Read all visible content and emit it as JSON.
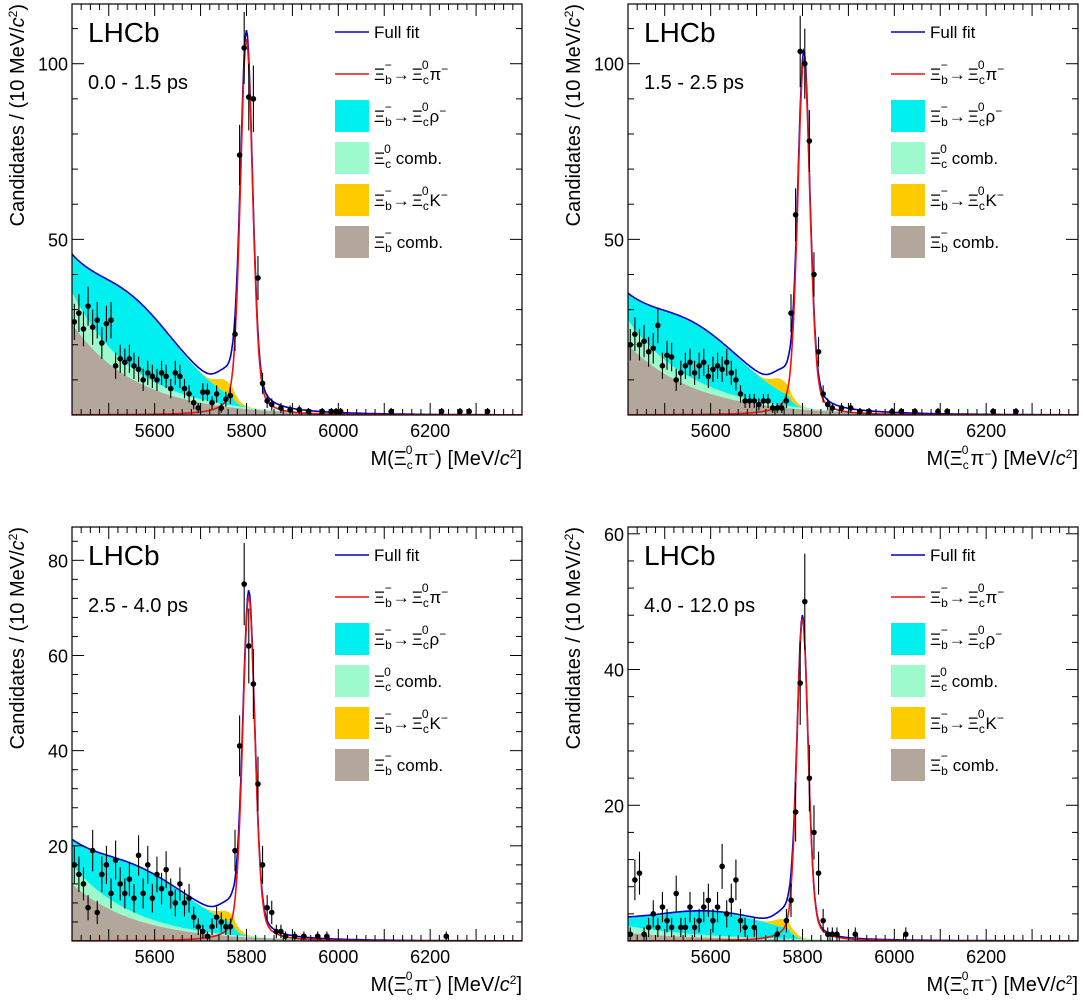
{
  "figure": {
    "experiment": "LHCb",
    "colors": {
      "full_fit": "#0000cc",
      "signal": "#ee1111",
      "xi_rho": "#00f0f0",
      "xic_comb": "#9dfacb",
      "xi_k": "#ffcc00",
      "xib_comb": "#b3a79b",
      "data": "#000000"
    },
    "axis_labels": {
      "x_main": "M(",
      "x_sym": "Ξ",
      "x_sub": "c",
      "x_sup": "0",
      "x_pi": "π",
      "x_minus": "−",
      "x_units": ") [MeV/",
      "x_c": "c",
      "x_two": "2",
      "x_end": "]",
      "y_main": "Candidates / (10 MeV/",
      "y_c": "c",
      "y_two": "2",
      "y_end": ")"
    },
    "legend": [
      {
        "key": "full_fit",
        "kind": "line",
        "text": "Full fit"
      },
      {
        "key": "signal",
        "kind": "line",
        "xi": "Ξ",
        "sub_b": "b",
        "sup_b": "−",
        "arrow": "→",
        "sub_c": "c",
        "sup_c": "0",
        "tail": "π",
        "tail_sup": "−"
      },
      {
        "key": "xi_rho",
        "kind": "box",
        "xi": "Ξ",
        "sub_b": "b",
        "sup_b": "−",
        "arrow": "→",
        "sub_c": "c",
        "sup_c": "0",
        "tail": "ρ",
        "tail_sup": "−"
      },
      {
        "key": "xic_comb",
        "kind": "box",
        "xi": "Ξ",
        "sub_c": "c",
        "sup_c": "0",
        "tail": "comb."
      },
      {
        "key": "xi_k",
        "kind": "box",
        "xi": "Ξ",
        "sub_b": "b",
        "sup_b": "−",
        "arrow": "→",
        "sub_c": "c",
        "sup_c": "0",
        "tail": "K",
        "tail_sup": "−"
      },
      {
        "key": "xib_comb",
        "kind": "box",
        "xi": "Ξ",
        "sub_b": "b",
        "sup_b": "−",
        "tail": "comb."
      }
    ]
  },
  "chart_data": [
    {
      "type": "line",
      "period": "0.0 - 1.5 ps",
      "xlim": [
        5420,
        6400
      ],
      "ylim": [
        0,
        117
      ],
      "xticks": [
        5600,
        5800,
        6000,
        6200
      ],
      "yticks": [
        50,
        100
      ],
      "model": {
        "peak_height": 107,
        "peak_mass": 5800,
        "sigma": 13,
        "rho_amp": 20.5,
        "rho_center": 5545,
        "rho_width": 110,
        "xic_amp": 9,
        "xic_slope": 125,
        "k_amp": 3.5,
        "k_center": 5755,
        "k_width": 20,
        "comb_amp": 26,
        "comb_slope": 140
      },
      "data_points": [
        {
          "x": 5425,
          "y": 26.5
        },
        {
          "x": 5435,
          "y": 29
        },
        {
          "x": 5445,
          "y": 24.5
        },
        {
          "x": 5455,
          "y": 31
        },
        {
          "x": 5465,
          "y": 25
        },
        {
          "x": 5475,
          "y": 27
        },
        {
          "x": 5485,
          "y": 20.5
        },
        {
          "x": 5495,
          "y": 26
        },
        {
          "x": 5505,
          "y": 27
        },
        {
          "x": 5515,
          "y": 14
        },
        {
          "x": 5525,
          "y": 16
        },
        {
          "x": 5535,
          "y": 15
        },
        {
          "x": 5545,
          "y": 16
        },
        {
          "x": 5555,
          "y": 14
        },
        {
          "x": 5565,
          "y": 13
        },
        {
          "x": 5575,
          "y": 10
        },
        {
          "x": 5585,
          "y": 12
        },
        {
          "x": 5595,
          "y": 11
        },
        {
          "x": 5605,
          "y": 10
        },
        {
          "x": 5615,
          "y": 12
        },
        {
          "x": 5625,
          "y": 11
        },
        {
          "x": 5635,
          "y": 7.5
        },
        {
          "x": 5645,
          "y": 12
        },
        {
          "x": 5655,
          "y": 11
        },
        {
          "x": 5665,
          "y": 7.5
        },
        {
          "x": 5675,
          "y": 6
        },
        {
          "x": 5685,
          "y": 3.5
        },
        {
          "x": 5695,
          "y": 2
        },
        {
          "x": 5705,
          "y": 6.5
        },
        {
          "x": 5715,
          "y": 6.5
        },
        {
          "x": 5725,
          "y": 3.5
        },
        {
          "x": 5735,
          "y": 6
        },
        {
          "x": 5745,
          "y": 2
        },
        {
          "x": 5755,
          "y": 4.5
        },
        {
          "x": 5765,
          "y": 5.5
        },
        {
          "x": 5775,
          "y": 23
        },
        {
          "x": 5785,
          "y": 74
        },
        {
          "x": 5795,
          "y": 104.5
        },
        {
          "x": 5805,
          "y": 90.5
        },
        {
          "x": 5815,
          "y": 90
        },
        {
          "x": 5825,
          "y": 39
        },
        {
          "x": 5835,
          "y": 9
        },
        {
          "x": 5845,
          "y": 4
        },
        {
          "x": 5855,
          "y": 3
        },
        {
          "x": 5875,
          "y": 2
        },
        {
          "x": 5895,
          "y": 1.5
        },
        {
          "x": 5915,
          "y": 1.5
        },
        {
          "x": 5935,
          "y": 1
        },
        {
          "x": 5965,
          "y": 1
        },
        {
          "x": 5985,
          "y": 1
        },
        {
          "x": 5995,
          "y": 1
        },
        {
          "x": 6005,
          "y": 1
        },
        {
          "x": 6115,
          "y": 1
        },
        {
          "x": 6225,
          "y": 1
        },
        {
          "x": 6265,
          "y": 1
        },
        {
          "x": 6285,
          "y": 1
        },
        {
          "x": 6325,
          "y": 1
        }
      ]
    },
    {
      "type": "line",
      "period": "1.5 - 2.5 ps",
      "xlim": [
        5420,
        6400
      ],
      "ylim": [
        0,
        117
      ],
      "xticks": [
        5600,
        5800,
        6000,
        6200
      ],
      "yticks": [
        50,
        100
      ],
      "model": {
        "peak_height": 101.5,
        "peak_mass": 5803,
        "sigma": 13,
        "rho_amp": 16,
        "rho_center": 5560,
        "rho_width": 115,
        "xic_amp": 7,
        "xic_slope": 140,
        "k_amp": 3.5,
        "k_center": 5755,
        "k_width": 20,
        "comb_amp": 20,
        "comb_slope": 150
      },
      "data_points": [
        {
          "x": 5425,
          "y": 20
        },
        {
          "x": 5435,
          "y": 23
        },
        {
          "x": 5445,
          "y": 20
        },
        {
          "x": 5455,
          "y": 21
        },
        {
          "x": 5465,
          "y": 18
        },
        {
          "x": 5475,
          "y": 19
        },
        {
          "x": 5485,
          "y": 25.5
        },
        {
          "x": 5495,
          "y": 14
        },
        {
          "x": 5505,
          "y": 17
        },
        {
          "x": 5515,
          "y": 16.5
        },
        {
          "x": 5525,
          "y": 10
        },
        {
          "x": 5535,
          "y": 12
        },
        {
          "x": 5545,
          "y": 14
        },
        {
          "x": 5555,
          "y": 15
        },
        {
          "x": 5565,
          "y": 12
        },
        {
          "x": 5575,
          "y": 14
        },
        {
          "x": 5585,
          "y": 15
        },
        {
          "x": 5595,
          "y": 11
        },
        {
          "x": 5605,
          "y": 13
        },
        {
          "x": 5615,
          "y": 14
        },
        {
          "x": 5625,
          "y": 13
        },
        {
          "x": 5635,
          "y": 15
        },
        {
          "x": 5645,
          "y": 12
        },
        {
          "x": 5655,
          "y": 10
        },
        {
          "x": 5665,
          "y": 6
        },
        {
          "x": 5675,
          "y": 4
        },
        {
          "x": 5685,
          "y": 4
        },
        {
          "x": 5695,
          "y": 4
        },
        {
          "x": 5705,
          "y": 3
        },
        {
          "x": 5715,
          "y": 4
        },
        {
          "x": 5725,
          "y": 4
        },
        {
          "x": 5735,
          "y": 2
        },
        {
          "x": 5745,
          "y": 2
        },
        {
          "x": 5755,
          "y": 2
        },
        {
          "x": 5765,
          "y": 4
        },
        {
          "x": 5775,
          "y": 29
        },
        {
          "x": 5785,
          "y": 57
        },
        {
          "x": 5795,
          "y": 103.5
        },
        {
          "x": 5805,
          "y": 100
        },
        {
          "x": 5815,
          "y": 78
        },
        {
          "x": 5825,
          "y": 40
        },
        {
          "x": 5835,
          "y": 18
        },
        {
          "x": 5845,
          "y": 6
        },
        {
          "x": 5855,
          "y": 3
        },
        {
          "x": 5865,
          "y": 2
        },
        {
          "x": 5885,
          "y": 2
        },
        {
          "x": 5905,
          "y": 2
        },
        {
          "x": 5925,
          "y": 1
        },
        {
          "x": 5945,
          "y": 1
        },
        {
          "x": 5995,
          "y": 1
        },
        {
          "x": 6015,
          "y": 1
        },
        {
          "x": 6045,
          "y": 1
        },
        {
          "x": 6095,
          "y": 1
        },
        {
          "x": 6115,
          "y": 1
        },
        {
          "x": 6215,
          "y": 1
        },
        {
          "x": 6265,
          "y": 1
        }
      ]
    },
    {
      "type": "line",
      "period": "2.5 - 4.0 ps",
      "xlim": [
        5420,
        6400
      ],
      "ylim": [
        0,
        87
      ],
      "xticks": [
        5600,
        5800,
        6000,
        6200
      ],
      "yticks": [
        20,
        40,
        60,
        80
      ],
      "model": {
        "peak_height": 72.5,
        "peak_mass": 5805,
        "sigma": 13,
        "rho_amp": 10,
        "rho_center": 5560,
        "rho_width": 125,
        "xic_amp": 4,
        "xic_slope": 130,
        "k_amp": 2,
        "k_center": 5760,
        "k_width": 20,
        "comb_amp": 12,
        "comb_slope": 140
      },
      "data_points": [
        {
          "x": 5425,
          "y": 16
        },
        {
          "x": 5435,
          "y": 14
        },
        {
          "x": 5445,
          "y": 12
        },
        {
          "x": 5455,
          "y": 7
        },
        {
          "x": 5465,
          "y": 19
        },
        {
          "x": 5475,
          "y": 6
        },
        {
          "x": 5485,
          "y": 14
        },
        {
          "x": 5495,
          "y": 16
        },
        {
          "x": 5505,
          "y": 10
        },
        {
          "x": 5515,
          "y": 17
        },
        {
          "x": 5525,
          "y": 12
        },
        {
          "x": 5535,
          "y": 10
        },
        {
          "x": 5545,
          "y": 13
        },
        {
          "x": 5555,
          "y": 9
        },
        {
          "x": 5565,
          "y": 18
        },
        {
          "x": 5575,
          "y": 10
        },
        {
          "x": 5585,
          "y": 16
        },
        {
          "x": 5595,
          "y": 9
        },
        {
          "x": 5605,
          "y": 14
        },
        {
          "x": 5615,
          "y": 11
        },
        {
          "x": 5625,
          "y": 15
        },
        {
          "x": 5635,
          "y": 10
        },
        {
          "x": 5645,
          "y": 8
        },
        {
          "x": 5655,
          "y": 12
        },
        {
          "x": 5665,
          "y": 8
        },
        {
          "x": 5675,
          "y": 9
        },
        {
          "x": 5685,
          "y": 5
        },
        {
          "x": 5695,
          "y": 3
        },
        {
          "x": 5705,
          "y": 2
        },
        {
          "x": 5715,
          "y": 1
        },
        {
          "x": 5725,
          "y": 3
        },
        {
          "x": 5735,
          "y": 5
        },
        {
          "x": 5745,
          "y": 4
        },
        {
          "x": 5755,
          "y": 3
        },
        {
          "x": 5765,
          "y": 3
        },
        {
          "x": 5775,
          "y": 19
        },
        {
          "x": 5785,
          "y": 41
        },
        {
          "x": 5795,
          "y": 75
        },
        {
          "x": 5805,
          "y": 62
        },
        {
          "x": 5815,
          "y": 54
        },
        {
          "x": 5825,
          "y": 33
        },
        {
          "x": 5835,
          "y": 16
        },
        {
          "x": 5845,
          "y": 7
        },
        {
          "x": 5855,
          "y": 6
        },
        {
          "x": 5865,
          "y": 2
        },
        {
          "x": 5875,
          "y": 2
        },
        {
          "x": 5885,
          "y": 1
        },
        {
          "x": 5905,
          "y": 1
        },
        {
          "x": 5925,
          "y": 1
        },
        {
          "x": 5955,
          "y": 1
        },
        {
          "x": 5975,
          "y": 1
        },
        {
          "x": 6235,
          "y": 1
        }
      ]
    },
    {
      "type": "line",
      "period": "4.0 - 12.0 ps",
      "xlim": [
        5420,
        6400
      ],
      "ylim": [
        0,
        61
      ],
      "xticks": [
        5600,
        5800,
        6000,
        6200
      ],
      "yticks": [
        20,
        40,
        60
      ],
      "model": {
        "peak_height": 47.5,
        "peak_mass": 5800,
        "sigma": 12,
        "rho_amp": 3.5,
        "rho_center": 5600,
        "rho_width": 130,
        "xic_amp": 1,
        "xic_slope": 170,
        "k_amp": 1.2,
        "k_center": 5760,
        "k_width": 20,
        "comb_amp": 1.2,
        "comb_slope": 200
      },
      "data_points": [
        {
          "x": 5425,
          "y": 1
        },
        {
          "x": 5435,
          "y": 9
        },
        {
          "x": 5445,
          "y": 10
        },
        {
          "x": 5455,
          "y": 1
        },
        {
          "x": 5465,
          "y": 2
        },
        {
          "x": 5475,
          "y": 4
        },
        {
          "x": 5485,
          "y": 2
        },
        {
          "x": 5495,
          "y": 5
        },
        {
          "x": 5505,
          "y": 3
        },
        {
          "x": 5515,
          "y": 2
        },
        {
          "x": 5525,
          "y": 7
        },
        {
          "x": 5535,
          "y": 2
        },
        {
          "x": 5545,
          "y": 2
        },
        {
          "x": 5555,
          "y": 5
        },
        {
          "x": 5565,
          "y": 2
        },
        {
          "x": 5575,
          "y": 3
        },
        {
          "x": 5585,
          "y": 5
        },
        {
          "x": 5595,
          "y": 6
        },
        {
          "x": 5605,
          "y": 3
        },
        {
          "x": 5615,
          "y": 5
        },
        {
          "x": 5625,
          "y": 11
        },
        {
          "x": 5635,
          "y": 4
        },
        {
          "x": 5645,
          "y": 6
        },
        {
          "x": 5655,
          "y": 9
        },
        {
          "x": 5665,
          "y": 3
        },
        {
          "x": 5675,
          "y": 2
        },
        {
          "x": 5695,
          "y": 2
        },
        {
          "x": 5745,
          "y": 1
        },
        {
          "x": 5765,
          "y": 3
        },
        {
          "x": 5775,
          "y": 6
        },
        {
          "x": 5785,
          "y": 19
        },
        {
          "x": 5795,
          "y": 38
        },
        {
          "x": 5805,
          "y": 50
        },
        {
          "x": 5815,
          "y": 24
        },
        {
          "x": 5825,
          "y": 16
        },
        {
          "x": 5835,
          "y": 10
        },
        {
          "x": 5845,
          "y": 3
        },
        {
          "x": 5855,
          "y": 1
        },
        {
          "x": 5865,
          "y": 1
        },
        {
          "x": 5875,
          "y": 1
        },
        {
          "x": 5915,
          "y": 1
        },
        {
          "x": 6025,
          "y": 1
        }
      ]
    }
  ]
}
